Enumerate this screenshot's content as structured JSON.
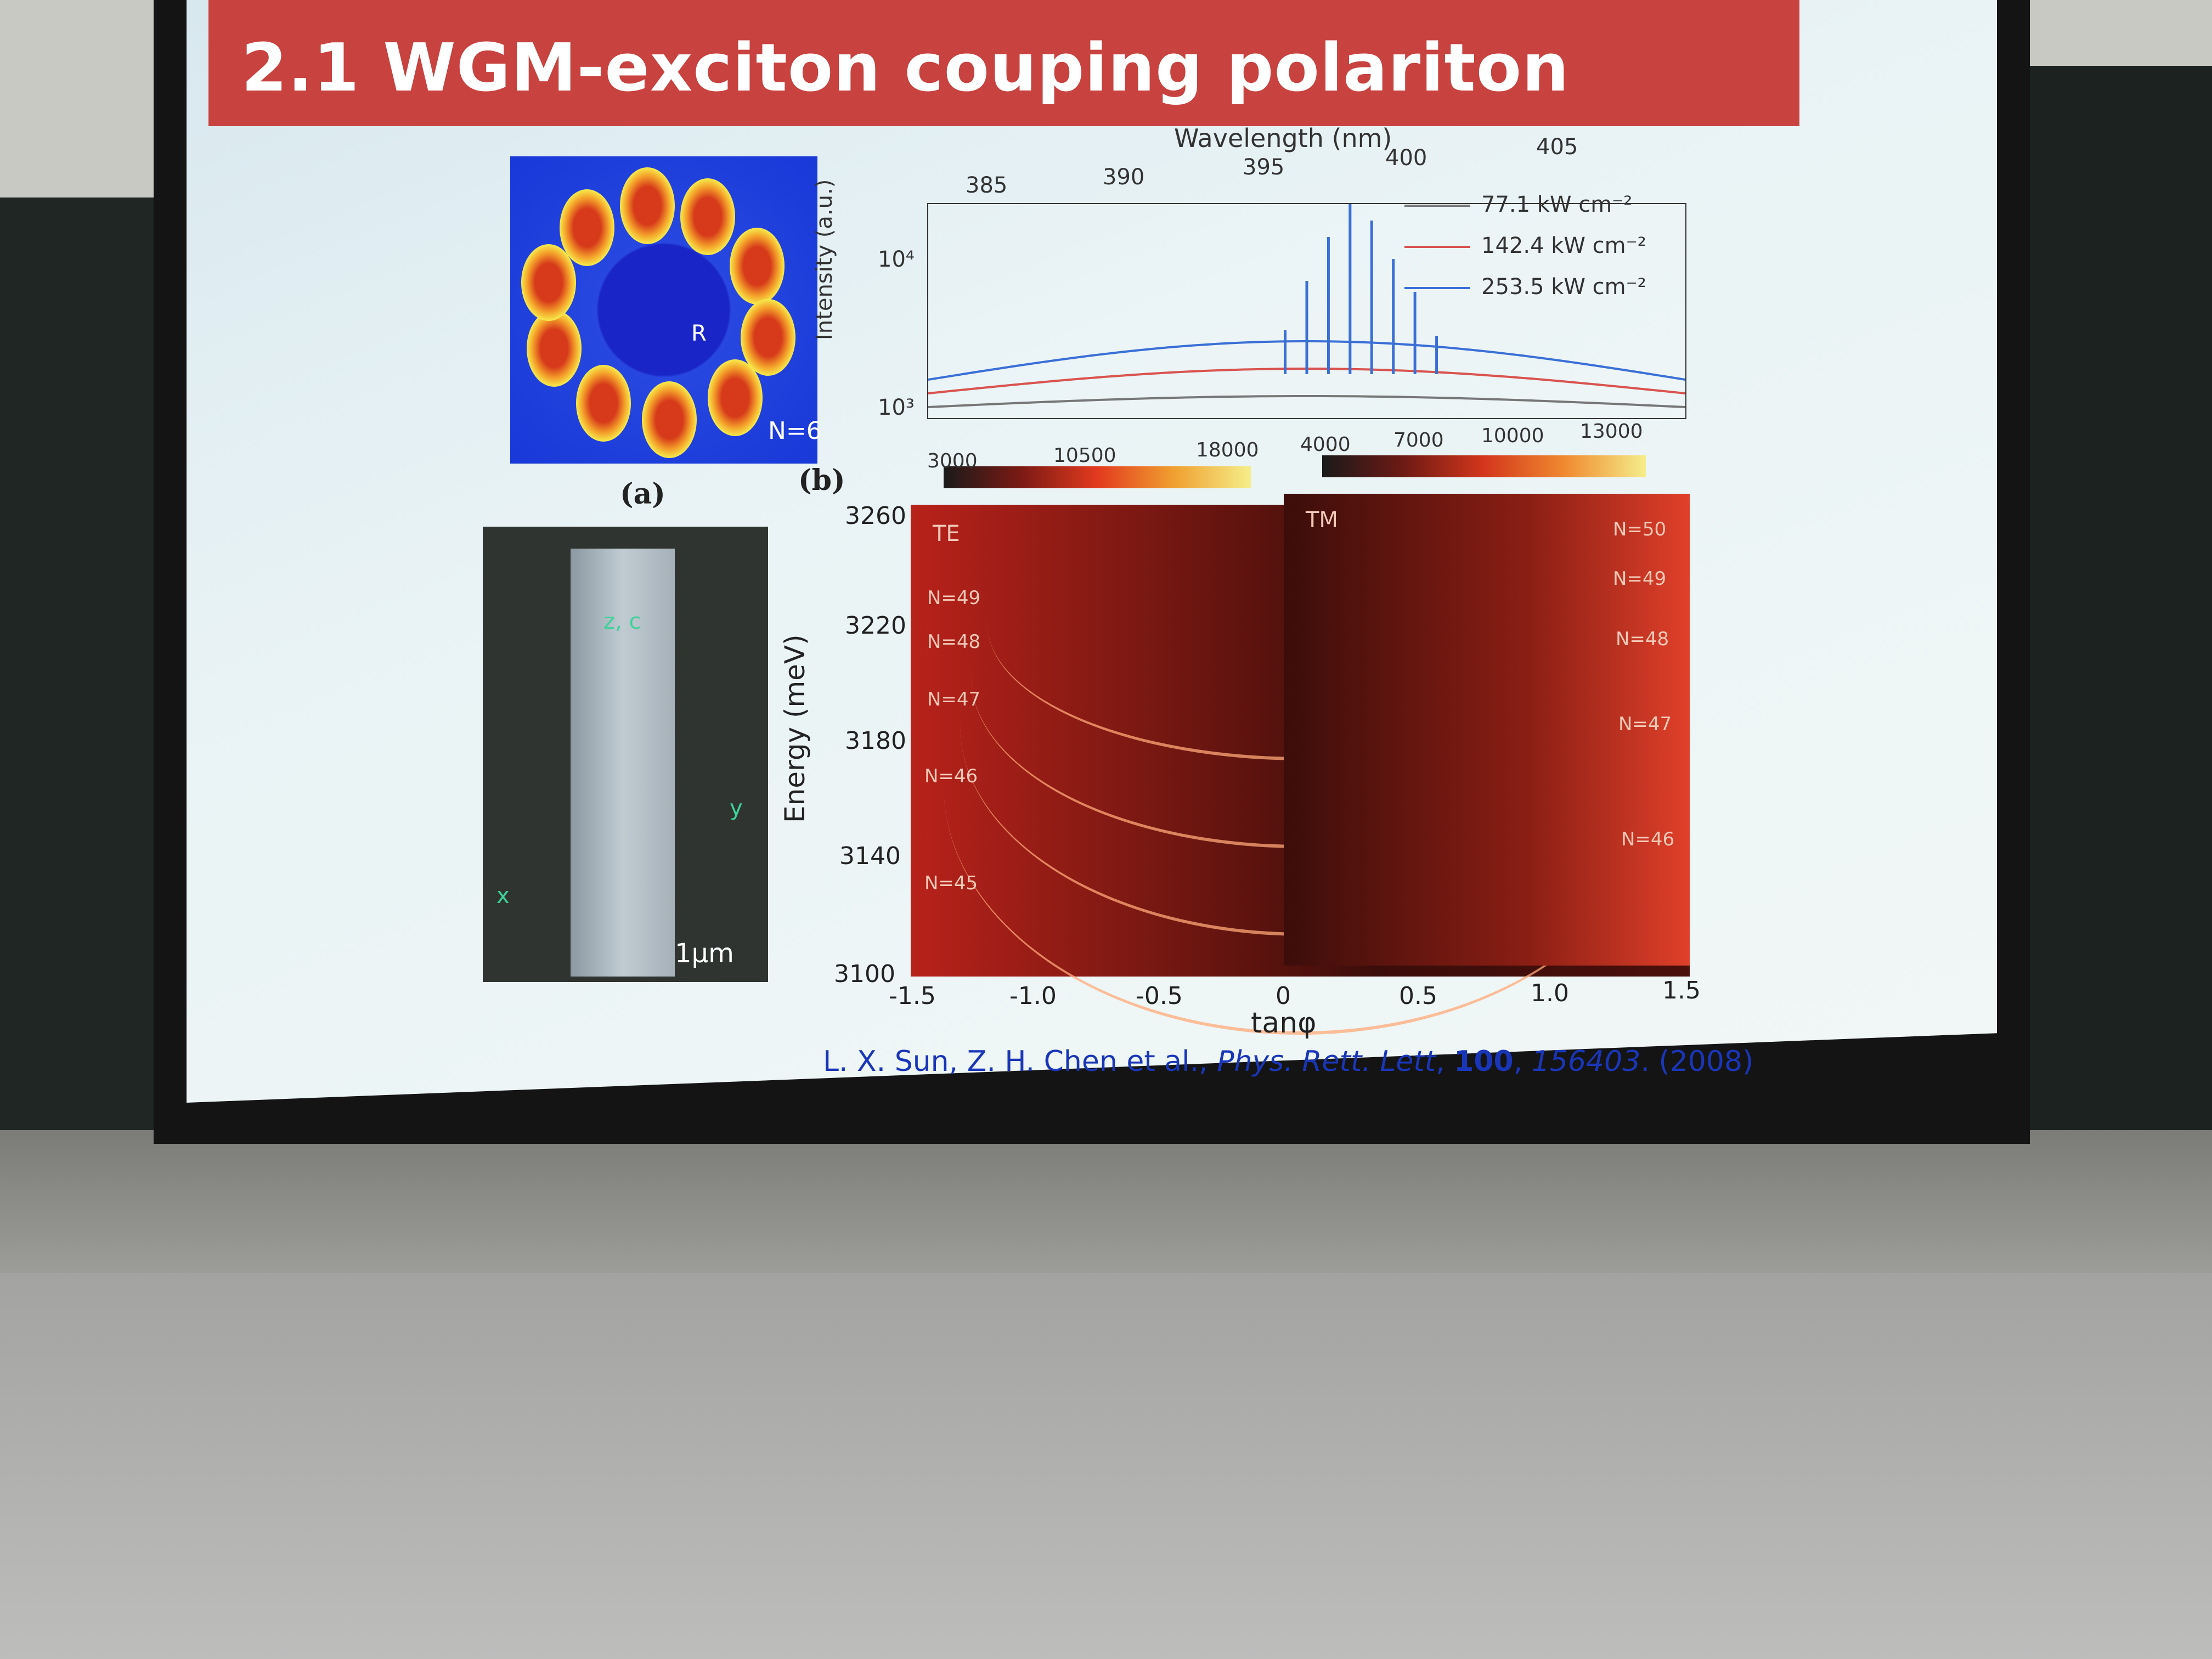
{
  "slide": {
    "title": "2.1 WGM-exciton couping polariton",
    "citation": {
      "authors": "L. X. Sun, Z. H. Chen et al., ",
      "journal": "Phys. Rett. Lett",
      "volume": "100",
      "pages": "156403",
      "year": ". (2008)"
    }
  },
  "figure_a": {
    "mode_label": "N=6",
    "radius_label": "R",
    "caption": "(a)"
  },
  "rod_image": {
    "axis_z": "z, c",
    "axis_y": "y",
    "axis_x": "x",
    "scale": "1μm"
  },
  "panel_b_label": "(b)",
  "chart_data": [
    {
      "type": "line",
      "xlabel": "Wavelength (nm)",
      "ylabel": "Intensity (a.u.)",
      "x_ticks": [
        "385",
        "390",
        "395",
        "400",
        "405"
      ],
      "y_ticks": [
        "10³",
        "10⁴"
      ],
      "y_scale": "log",
      "series": [
        {
          "name": "77.1 kW cm⁻²",
          "color": "#777777"
        },
        {
          "name": "142.4 kW cm⁻²",
          "color": "#d9534f"
        },
        {
          "name": "253.5 kW cm⁻²",
          "color": "#3a6fd6"
        }
      ],
      "peaks_nm": [
        393.2,
        394.0,
        394.8,
        395.6,
        396.4,
        397.2,
        398.0,
        398.8
      ]
    },
    {
      "type": "heatmap",
      "xlabel": "tanφ",
      "ylabel": "Energy (meV)",
      "x_ticks": [
        "-1.5",
        "-1.0",
        "-0.5",
        "0",
        "0.5",
        "1.0",
        "1.5"
      ],
      "y_ticks": [
        "3260",
        "3220",
        "3180",
        "3140",
        "3100"
      ],
      "panels": [
        "TE",
        "TM"
      ],
      "colorbar_te": [
        "3000",
        "10500",
        "18000"
      ],
      "colorbar_tm": [
        "4000",
        "7000",
        "10000",
        "13000"
      ],
      "te_modes": [
        "N=49",
        "N=48",
        "N=47",
        "N=46",
        "N=45"
      ],
      "tm_modes": [
        "N=50",
        "N=49",
        "N=48",
        "N=47",
        "N=46"
      ]
    }
  ]
}
